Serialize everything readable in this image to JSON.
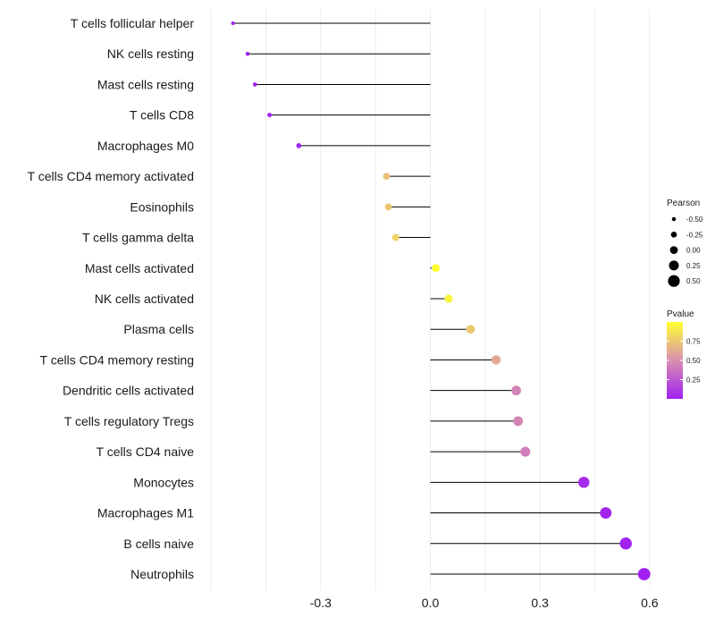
{
  "chart_data": {
    "type": "lollipop",
    "categories": [
      "T cells follicular helper",
      "NK cells resting",
      "Mast cells resting",
      "T cells CD8",
      "Macrophages M0",
      "T cells CD4 memory activated",
      "Eosinophils",
      "T cells gamma delta",
      "Mast cells activated",
      "NK cells activated",
      "Plasma cells",
      "T cells CD4 memory resting",
      "Dendritic cells activated",
      "T cells regulatory  Tregs ",
      "T cells CD4 naive",
      "Monocytes",
      "Macrophages M1",
      "B cells naive",
      "Neutrophils"
    ],
    "values": [
      -0.54,
      -0.5,
      -0.48,
      -0.44,
      -0.36,
      -0.12,
      -0.115,
      -0.095,
      0.015,
      0.05,
      0.11,
      0.18,
      0.235,
      0.24,
      0.26,
      0.42,
      0.48,
      0.535,
      0.585
    ],
    "pvalues": [
      0.001,
      0.002,
      0.003,
      0.008,
      0.03,
      0.72,
      0.75,
      0.8,
      1.0,
      0.95,
      0.75,
      0.62,
      0.45,
      0.45,
      0.42,
      0.05,
      0.02,
      0.005,
      0.002
    ],
    "xlim": [
      -0.62,
      0.62
    ],
    "xticks": [
      -0.3,
      0.0,
      0.3,
      0.6
    ],
    "xtick_labels": [
      "-0.3",
      "0.0",
      "0.3",
      "0.6"
    ],
    "xlabel": "",
    "ylabel": "",
    "title": "",
    "legend_size": {
      "title": "Pearson",
      "values": [
        -0.5,
        -0.25,
        0.0,
        0.25,
        0.5
      ],
      "labels": [
        "-0.50",
        "-0.25",
        "0.00",
        "0.25",
        "0.50"
      ]
    },
    "legend_color": {
      "title": "Pvalue",
      "ticks": [
        0.25,
        0.5,
        0.75
      ],
      "labels": [
        "0.25",
        "0.50",
        "0.75"
      ],
      "low_color": "#a020f0",
      "mid_color": "#d98fb0",
      "high_color": "#ffff33"
    }
  }
}
